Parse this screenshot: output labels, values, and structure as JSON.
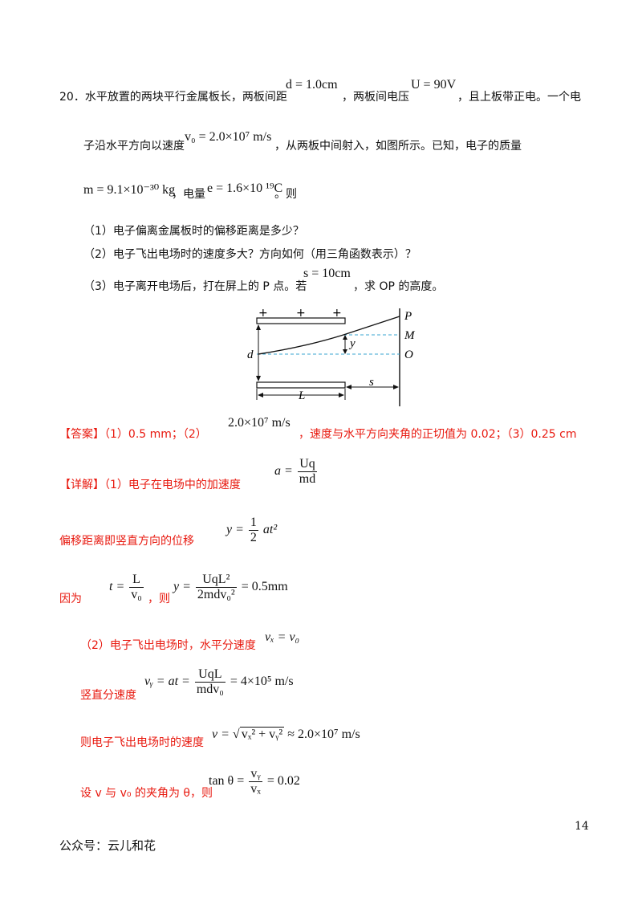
{
  "problem": {
    "number": "20．",
    "line1_a": "水平放置的两块平行金属板长，两板间距",
    "d_eq": "d = 1.0cm",
    "line1_b": "，两板间电压",
    "u_eq": "U = 90V",
    "line1_c": "，且上板带正电。一个电",
    "line2_a": "子沿水平方向以速度",
    "v0_eq": "v₀ = 2.0×10⁷ m/s",
    "line2_b": "，从两板中间射入，如图所示。已知，电子的质量",
    "m_eq": "m = 9.1×10⁻³⁰ kg",
    "line3_a": "，电量",
    "e_eq": "e = 1.6×10  ¹⁹C",
    "line3_b": "。则",
    "q1": "（1）电子偏离金属板时的偏移距离是多少？",
    "q2": "（2）电子飞出电场时的速度多大？方向如何（用三角函数表示）？",
    "q3_a": "（3）电子离开电场后，打在屏上的 P 点。若",
    "s_eq": "s = 10cm",
    "q3_b": "，求 OP 的高度。"
  },
  "diagram": {
    "plus1": "+",
    "plus2": "+",
    "plus3": "+",
    "label_P": "P",
    "label_M": "M",
    "label_O": "O",
    "label_y": "y",
    "label_d": "d",
    "label_L": "L",
    "label_s": "s"
  },
  "answer": {
    "tag": "【答案】",
    "part1": "（1）0.5 mm；（2）",
    "v_eq": "2.0×10⁷ m/s",
    "part2": "，速度与水平方向夹角的正切值为 0.02；（3）0.25 cm"
  },
  "solution": {
    "tag": "【详解】",
    "s1_text": "（1）电子在电场中的加速度",
    "s1_lhs": "a =",
    "s1_num": "Uq",
    "s1_den": "md",
    "s2_text": "偏移距离即竖直方向的位移",
    "s2_lhs": "y =",
    "s2_num": "1",
    "s2_den": "2",
    "s2_rest": "at²",
    "s3_text_a": "因为",
    "s3_lhs": "t =",
    "s3_num": "L",
    "s3_den": "v₀",
    "s3_text_b": "，则",
    "s3_lhs2": "y =",
    "s3_num2": "UqL²",
    "s3_den2": "2mdv₀²",
    "s3_rest": "= 0.5mm",
    "s4_text": "（2）电子飞出电场时，水平分速度",
    "s4_eq": "vₓ = v₀",
    "s5_text": "竖直分速度",
    "s5_lhs": "vᵧ = at =",
    "s5_num": "UqL",
    "s5_den": "mdv₀",
    "s5_rest": "= 4×10⁵ m/s",
    "s6_text": "则电子飞出电场时的速度",
    "s6_lhs": "v =",
    "s6_root": "vₓ² + vᵧ²",
    "s6_rest": "≈ 2.0×10⁷ m/s",
    "s7_text": "设 v 与 v₀ 的夹角为 θ，则",
    "s7_lhs": "tan θ =",
    "s7_num": "vᵧ",
    "s7_den": "vₓ",
    "s7_rest": "= 0.02"
  },
  "page_number": "14",
  "footer": "公众号：云儿和花"
}
